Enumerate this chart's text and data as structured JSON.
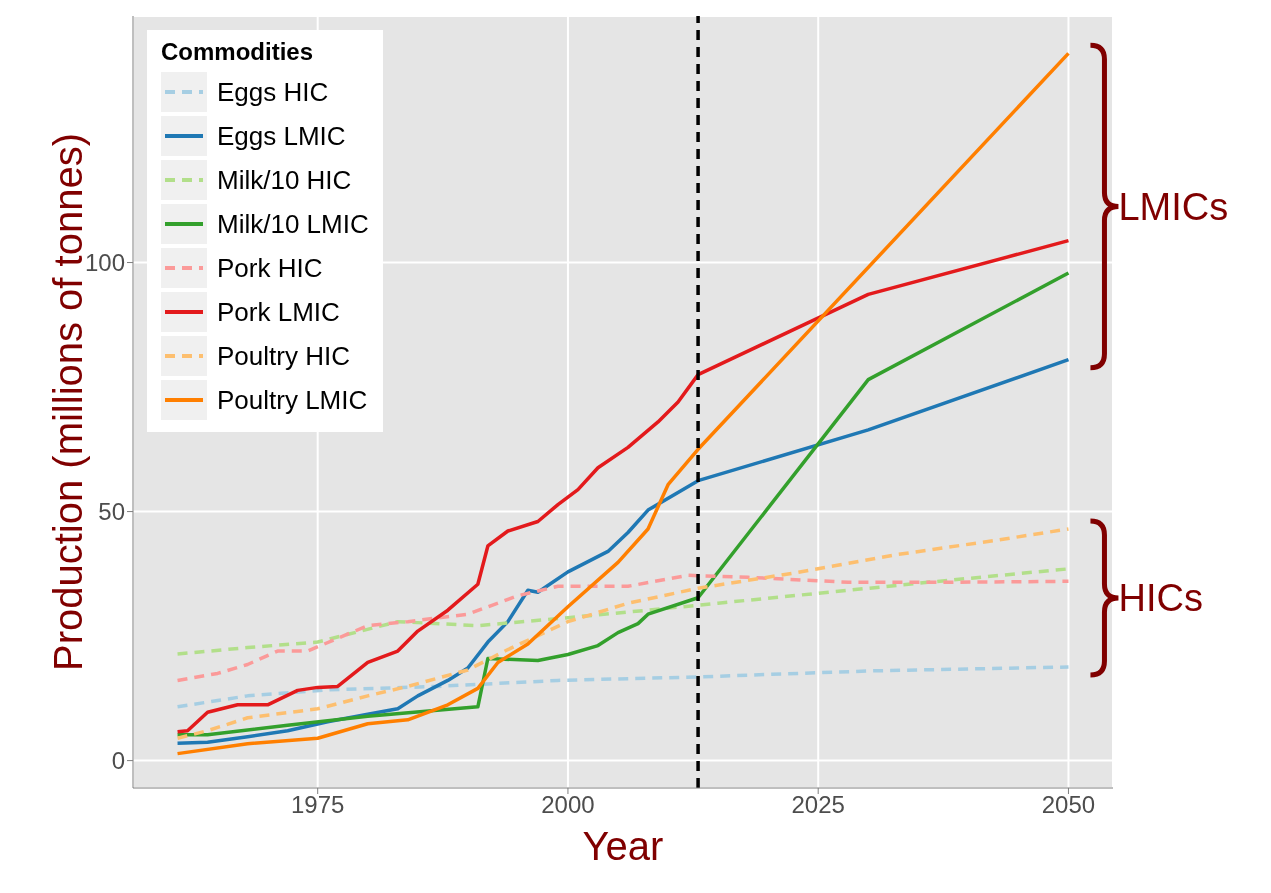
{
  "chart_data": {
    "type": "line",
    "xlabel": "Year",
    "ylabel": "Production (millions of tonnes)",
    "legend_title": "Commodities",
    "legend": "top left",
    "grid": true,
    "xlim": [
      1956.55,
      2054.45
    ],
    "xticks": [
      1975,
      2000,
      2025,
      2050
    ],
    "ylim": [
      -5.5,
      149.5
    ],
    "yticks": [
      0,
      50,
      100
    ],
    "ref_lines": [
      {
        "axis": "x",
        "value": 2013,
        "color": "#000000",
        "line_style": "dashed"
      }
    ],
    "annotations": [
      "LMICs",
      "HICs"
    ],
    "series": [
      {
        "name": "Eggs HIC",
        "color": "#a6cee3",
        "line_style": "dashed",
        "x": [
          1961,
          1968,
          1976,
          1987,
          1999,
          2013,
          2030,
          2050
        ],
        "values": [
          10.8,
          13,
          14.2,
          14.9,
          16.1,
          16.8,
          18,
          18.8
        ]
      },
      {
        "name": "Eggs LMIC",
        "color": "#1f78b4",
        "line_style": "solid",
        "x": [
          1961,
          1964,
          1968,
          1972,
          1976,
          1980,
          1983,
          1985,
          1988,
          1990,
          1992,
          1994,
          1996,
          1997,
          2000,
          2004,
          2006,
          2008,
          2013,
          2030,
          2050
        ],
        "values": [
          3.5,
          3.7,
          4.8,
          6.0,
          7.8,
          9.3,
          10.4,
          13.0,
          16.1,
          18.6,
          23.8,
          27.9,
          34.2,
          33.8,
          37.9,
          42,
          45.8,
          50.3,
          56.2,
          66.4,
          80.5
        ]
      },
      {
        "name": "Milk/10 HIC",
        "color": "#b2df8a",
        "line_style": "dashed",
        "x": [
          1961,
          1968,
          1975,
          1983,
          1991,
          2000,
          2008,
          2015,
          2025,
          2038,
          2050
        ],
        "values": [
          21.4,
          22.7,
          23.8,
          27.9,
          27.1,
          28.7,
          30.2,
          31.6,
          33.6,
          36.2,
          38.5
        ]
      },
      {
        "name": "Milk/10 LMIC",
        "color": "#33a02c",
        "line_style": "solid",
        "x": [
          1961,
          1964,
          1972,
          1980,
          1991,
          1992,
          1997,
          2000,
          2003,
          2005,
          2007,
          2008,
          2013,
          2030,
          2050
        ],
        "values": [
          5.2,
          5.2,
          7.1,
          8.9,
          10.8,
          20.5,
          20.1,
          21.3,
          23.1,
          25.7,
          27.5,
          29.4,
          32.7,
          76.5,
          97.9
        ]
      },
      {
        "name": "Pork HIC",
        "color": "#fb9a99",
        "line_style": "dashed",
        "x": [
          1961,
          1965,
          1968,
          1971,
          1974,
          1980,
          1984,
          1990,
          1995,
          1999,
          2006,
          2012,
          2018,
          2028,
          2038,
          2050
        ],
        "values": [
          16.1,
          17.5,
          19.3,
          22,
          22,
          27.1,
          27.9,
          29.4,
          33.1,
          35,
          35,
          37.2,
          36.8,
          35.8,
          35.8,
          36
        ]
      },
      {
        "name": "Pork LMIC",
        "color": "#e31a1c",
        "line_style": "solid",
        "x": [
          1961,
          1962,
          1964,
          1967,
          1970,
          1973,
          1975,
          1977,
          1980,
          1983,
          1985,
          1988,
          1991,
          1992,
          1994,
          1997,
          1999,
          2001,
          2003,
          2006,
          2009,
          2011,
          2013,
          2030,
          2050
        ],
        "values": [
          5.8,
          6.0,
          9.7,
          11.2,
          11.2,
          14.1,
          14.7,
          14.9,
          19.7,
          22,
          26,
          30.2,
          35.4,
          43.1,
          46.1,
          48,
          51.4,
          54.4,
          58.8,
          62.9,
          68,
          72,
          77.5,
          93.6,
          104.4
        ]
      },
      {
        "name": "Poultry HIC",
        "color": "#fdbf6f",
        "line_style": "dashed",
        "x": [
          1961,
          1964,
          1968,
          1975,
          1980,
          1984,
          1990,
          1994,
          2000,
          2006,
          2013,
          2023,
          2033,
          2043,
          2050
        ],
        "values": [
          4.5,
          6,
          8.6,
          10.4,
          13,
          14.9,
          18.2,
          22.3,
          27.9,
          31.6,
          34.6,
          37.8,
          41.4,
          44.3,
          46.5
        ]
      },
      {
        "name": "Poultry LMIC",
        "color": "#ff7f00",
        "line_style": "solid",
        "x": [
          1961,
          1968,
          1975,
          1980,
          1984,
          1988,
          1991,
          1993,
          1996,
          2000,
          2005,
          2008,
          2010,
          2013,
          2050
        ],
        "values": [
          1.4,
          3.4,
          4.5,
          7.4,
          8.2,
          11.2,
          14.5,
          19.7,
          23.4,
          30.9,
          39.8,
          46.5,
          55.4,
          62.5,
          142
        ]
      }
    ]
  }
}
